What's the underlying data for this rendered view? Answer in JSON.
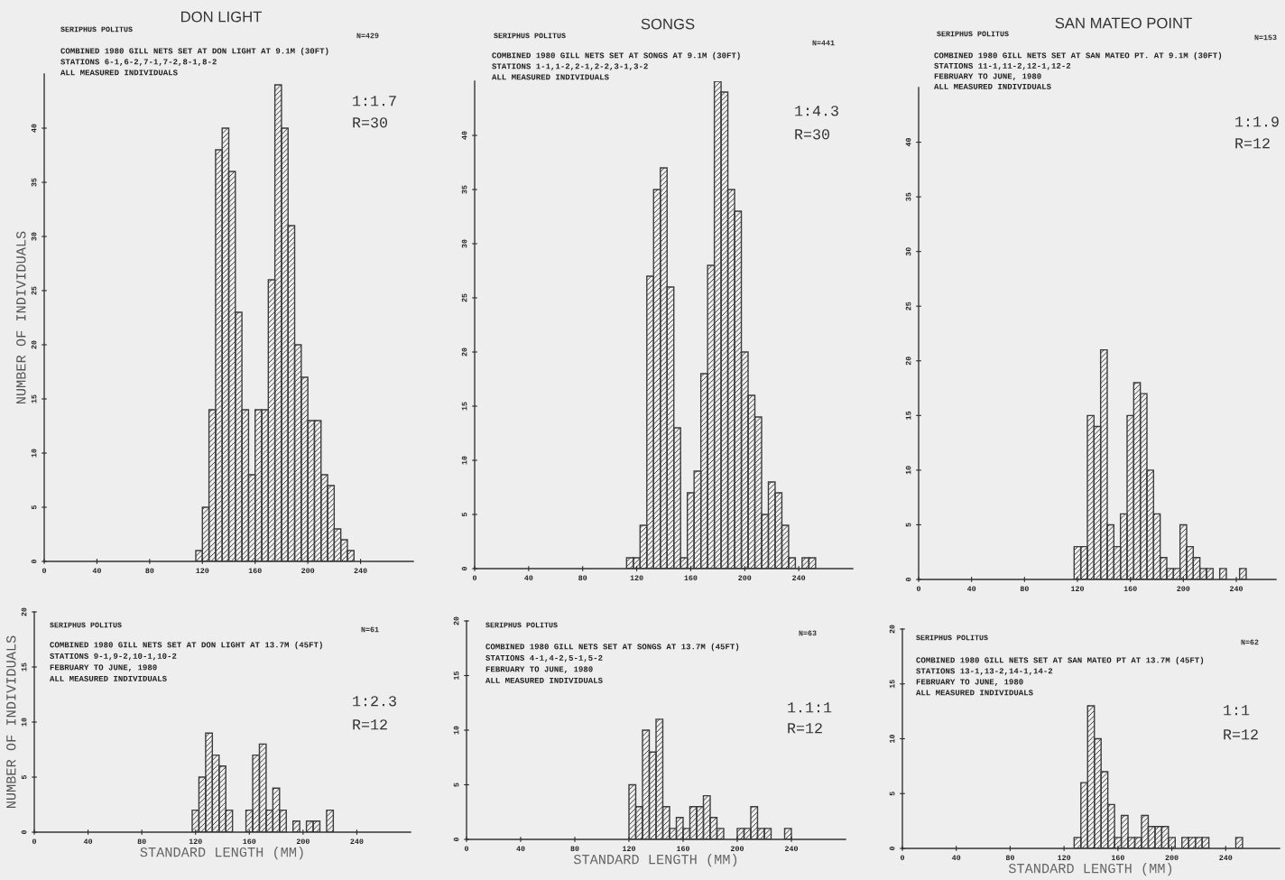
{
  "chart_data": [
    {
      "type": "histogram",
      "title": "DON LIGHT",
      "subtitle": "SERIPHUS POLITUS",
      "ylabel": "NUMBER OF INDIVIDUALS",
      "color": "#3c3c3c",
      "annotations": [
        "N=429",
        "COMBINED 1980 GILL NETS SET AT DON LIGHT AT 9.1M (30FT)",
        "STATIONS 6-1,6-2,7-1,7-2,8-1,8-2",
        "ALL MEASURED INDIVIDUALS",
        "1:1.7",
        "R=30"
      ],
      "bins": [
        115,
        120,
        125,
        130,
        135,
        140,
        145,
        150,
        155,
        160,
        165,
        170,
        175,
        180,
        185,
        190,
        195,
        200,
        205,
        210,
        215,
        220,
        225,
        230,
        235
      ],
      "values": [
        1,
        5,
        14,
        38,
        40,
        36,
        23,
        14,
        8,
        14,
        14,
        26,
        44,
        40,
        31,
        20,
        17,
        13,
        13,
        8,
        7,
        3,
        2,
        1
      ],
      "xlim": [
        0,
        280
      ],
      "ylim": [
        0,
        45
      ],
      "xticks": [
        0,
        40,
        80,
        120,
        160,
        200,
        240
      ],
      "yticks": [
        0,
        5,
        10,
        15,
        20,
        25,
        30,
        35,
        40
      ]
    },
    {
      "type": "histogram",
      "title": "SONGS",
      "subtitle": "SERIPHUS POLITUS",
      "color": "#3c3c3c",
      "annotations": [
        "N=441",
        "COMBINED 1980 GILL NETS SET AT SONGS AT 9.1M (30FT)",
        "STATIONS 1-1,1-2,2-1,2-2,3-1,3-2",
        "ALL MEASURED INDIVIDUALS",
        "1:4.3",
        "R=30"
      ],
      "bins": [
        112.5,
        117.5,
        122.5,
        127.5,
        132.5,
        137.5,
        142.5,
        147.5,
        152.5,
        157.5,
        162.5,
        167.5,
        172.5,
        177.5,
        182.5,
        187.5,
        192.5,
        197.5,
        202.5,
        207.5,
        212.5,
        217.5,
        222.5,
        227.5,
        232.5,
        237.5,
        242.5,
        247.5,
        252.5
      ],
      "values": [
        1,
        1,
        4,
        27,
        35,
        37,
        26,
        13,
        1,
        7,
        9,
        18,
        28,
        45,
        44,
        35,
        33,
        20,
        16,
        14,
        5,
        8,
        7,
        4,
        1,
        0,
        1,
        1
      ],
      "xlim": [
        0,
        280
      ],
      "ylim": [
        0,
        45
      ],
      "xticks": [
        0,
        40,
        80,
        120,
        160,
        200,
        240
      ],
      "yticks": [
        0,
        5,
        10,
        15,
        20,
        25,
        30,
        35,
        40
      ]
    },
    {
      "type": "histogram",
      "title": "SAN MATEO POINT",
      "subtitle": "SERIPHUS POLITUS",
      "color": "#3c3c3c",
      "annotations": [
        "N=153",
        "COMBINED 1980 GILL NETS SET AT SAN MATEO PT. AT 9.1M (30FT)",
        "STATIONS 11-1,11-2,12-1,12-2",
        "FEBRUARY TO JUNE, 1980",
        "ALL MEASURED INDIVIDUALS",
        "1:1.9",
        "R=12"
      ],
      "bins": [
        117.5,
        122.5,
        127.5,
        132.5,
        137.5,
        142.5,
        147.5,
        152.5,
        157.5,
        162.5,
        167.5,
        172.5,
        177.5,
        182.5,
        187.5,
        192.5,
        197.5,
        202.5,
        207.5,
        212.5,
        217.5,
        222.5,
        227.5,
        232.5,
        237.5,
        242.5,
        247.5
      ],
      "values": [
        3,
        3,
        15,
        14,
        21,
        5,
        3,
        6,
        15,
        18,
        17,
        10,
        6,
        2,
        1,
        1,
        5,
        3,
        2,
        1,
        1,
        0,
        1,
        0,
        0,
        1
      ],
      "xlim": [
        0,
        270
      ],
      "ylim": [
        0,
        45
      ],
      "xticks": [
        0,
        40,
        80,
        120,
        160,
        200,
        240
      ],
      "yticks": [
        0,
        5,
        10,
        15,
        20,
        25,
        30,
        35,
        40
      ]
    },
    {
      "type": "histogram",
      "subtitle": "SERIPHUS POLITUS",
      "xlabel": "STANDARD LENGTH (MM)",
      "ylabel": "NUMBER OF INDIVIDUALS",
      "color": "#3c3c3c",
      "annotations": [
        "N=61",
        "COMBINED 1980 GILL NETS SET AT DON LIGHT AT 13.7M (45FT)",
        "STATIONS 9-1,9-2,10-1,10-2",
        "FEBRUARY TO JUNE, 1980",
        "ALL MEASURED INDIVIDUALS",
        "1:2.3",
        "R=12"
      ],
      "bins": [
        117.5,
        122.5,
        127.5,
        132.5,
        137.5,
        142.5,
        147.5,
        152.5,
        157.5,
        162.5,
        167.5,
        172.5,
        177.5,
        182.5,
        187.5,
        192.5,
        197.5,
        202.5,
        207.5,
        212.5,
        217.5,
        222.5
      ],
      "values": [
        2,
        5,
        9,
        7,
        6,
        2,
        0,
        0,
        2,
        7,
        8,
        2,
        4,
        2,
        0,
        1,
        0,
        1,
        1,
        0,
        2
      ],
      "xlim": [
        0,
        280
      ],
      "ylim": [
        0,
        20
      ],
      "xticks": [
        0,
        40,
        80,
        120,
        160,
        200,
        240
      ],
      "yticks": [
        0,
        5,
        10,
        15,
        20
      ]
    },
    {
      "type": "histogram",
      "subtitle": "SERIPHUS POLITUS",
      "xlabel": "STANDARD LENGTH (MM)",
      "color": "#3c3c3c",
      "annotations": [
        "N=63",
        "COMBINED 1980 GILL NETS SET AT SONGS AT 13.7M (45FT)",
        "STATIONS 4-1,4-2,5-1,5-2",
        "FEBRUARY TO JUNE, 1980",
        "ALL MEASURED INDIVIDUALS",
        "1.1:1",
        "R=12"
      ],
      "bins": [
        120,
        125,
        130,
        135,
        140,
        145,
        150,
        155,
        160,
        165,
        170,
        175,
        180,
        185,
        190,
        195,
        200,
        205,
        210,
        215,
        220,
        225,
        230,
        235,
        240
      ],
      "values": [
        5,
        3,
        10,
        8,
        11,
        3,
        1,
        2,
        1,
        3,
        3,
        4,
        2,
        1,
        0,
        0,
        1,
        1,
        3,
        1,
        1,
        0,
        0,
        1
      ],
      "xlim": [
        0,
        280
      ],
      "ylim": [
        0,
        20
      ],
      "xticks": [
        0,
        40,
        80,
        120,
        160,
        200,
        240
      ],
      "yticks": [
        0,
        5,
        10,
        15,
        20
      ]
    },
    {
      "type": "histogram",
      "subtitle": "SERIPHUS POLITUS",
      "xlabel": "STANDARD LENGTH (MM)",
      "color": "#3c3c3c",
      "annotations": [
        "N=62",
        "COMBINED 1980 GILL NETS SET AT SAN MATEO PT AT 13.7M (45FT)",
        "STATIONS 13-1,13-2,14-1,14-2",
        "FEBRUARY TO JUNE, 1980",
        "ALL MEASURED INDIVIDUALS",
        "1:1",
        "R=12"
      ],
      "bins": [
        127.5,
        132.5,
        137.5,
        142.5,
        147.5,
        152.5,
        157.5,
        162.5,
        167.5,
        172.5,
        177.5,
        182.5,
        187.5,
        192.5,
        197.5,
        202.5,
        207.5,
        212.5,
        217.5,
        222.5,
        227.5,
        232.5,
        237.5,
        242.5,
        247.5,
        252.5
      ],
      "values": [
        1,
        6,
        13,
        10,
        7,
        4,
        1,
        3,
        1,
        1,
        3,
        2,
        2,
        2,
        1,
        0,
        1,
        1,
        1,
        1,
        0,
        0,
        0,
        0,
        1
      ],
      "xlim": [
        0,
        280
      ],
      "ylim": [
        0,
        20
      ],
      "xticks": [
        0,
        40,
        80,
        120,
        160,
        200,
        240
      ],
      "yticks": [
        0,
        5,
        10,
        15,
        20
      ]
    }
  ]
}
